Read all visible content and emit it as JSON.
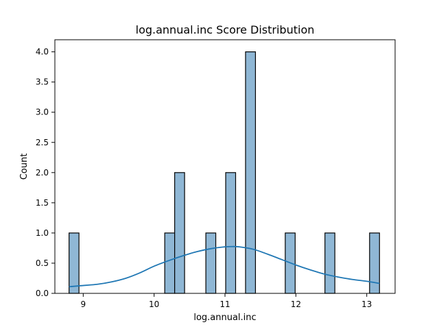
{
  "chart_data": {
    "type": "bar",
    "title": "log.annual.inc Score Distribution",
    "xlabel": "log.annual.inc",
    "ylabel": "Count",
    "xlim": [
      8.6,
      13.4
    ],
    "ylim": [
      0,
      4.2
    ],
    "xticks": [
      "9",
      "10",
      "11",
      "12",
      "13"
    ],
    "xtick_values": [
      9,
      10,
      11,
      12,
      13
    ],
    "yticks": [
      "0.0",
      "0.5",
      "1.0",
      "1.5",
      "2.0",
      "2.5",
      "3.0",
      "3.5",
      "4.0"
    ],
    "ytick_values": [
      0,
      0.5,
      1,
      1.5,
      2,
      2.5,
      3,
      3.5,
      4
    ],
    "grid": false,
    "bins": [
      {
        "x0": 8.8,
        "x1": 8.94,
        "count": 1
      },
      {
        "x0": 10.15,
        "x1": 10.29,
        "count": 1
      },
      {
        "x0": 10.29,
        "x1": 10.43,
        "count": 2
      },
      {
        "x0": 10.73,
        "x1": 10.87,
        "count": 1
      },
      {
        "x0": 11.01,
        "x1": 11.15,
        "count": 2
      },
      {
        "x0": 11.29,
        "x1": 11.43,
        "count": 4
      },
      {
        "x0": 11.85,
        "x1": 11.99,
        "count": 1
      },
      {
        "x0": 12.41,
        "x1": 12.55,
        "count": 1
      },
      {
        "x0": 13.04,
        "x1": 13.18,
        "count": 1
      }
    ],
    "kde": {
      "x": [
        8.8,
        9.0,
        9.2,
        9.4,
        9.6,
        9.8,
        10.0,
        10.2,
        10.4,
        10.6,
        10.8,
        11.0,
        11.1,
        11.2,
        11.4,
        11.6,
        11.8,
        12.0,
        12.2,
        12.4,
        12.6,
        12.8,
        13.0,
        13.18
      ],
      "y": [
        0.11,
        0.13,
        0.15,
        0.19,
        0.25,
        0.34,
        0.45,
        0.54,
        0.62,
        0.69,
        0.74,
        0.77,
        0.775,
        0.77,
        0.73,
        0.65,
        0.56,
        0.47,
        0.39,
        0.32,
        0.27,
        0.23,
        0.2,
        0.165
      ]
    },
    "colors": {
      "bar_fill": "#8fb7d5",
      "bar_edge": "#000000",
      "kde_line": "#1f77b4"
    }
  }
}
